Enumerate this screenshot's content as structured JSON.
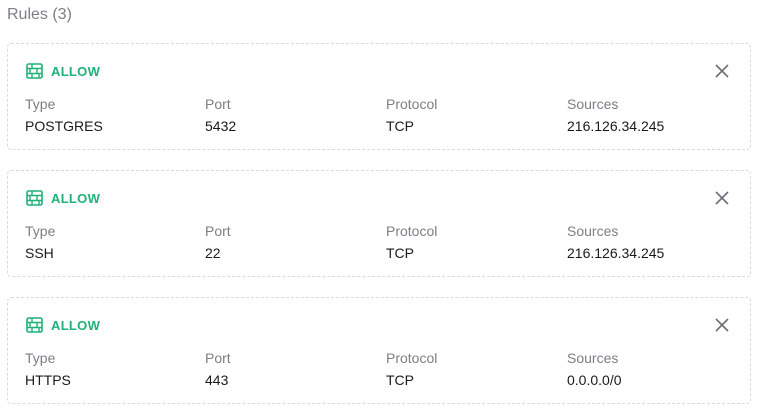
{
  "title": "Rules (3)",
  "accent": "#1fb177",
  "headers": [
    "Type",
    "Port",
    "Protocol",
    "Sources"
  ],
  "rules": [
    {
      "action": "ALLOW",
      "icon": "firewall-icon",
      "values": [
        "POSTGRES",
        "5432",
        "TCP",
        "216.126.34.245"
      ]
    },
    {
      "action": "ALLOW",
      "icon": "firewall-icon",
      "values": [
        "SSH",
        "22",
        "TCP",
        "216.126.34.245"
      ]
    },
    {
      "action": "ALLOW",
      "icon": "firewall-icon",
      "values": [
        "HTTPS",
        "443",
        "TCP",
        "0.0.0.0/0"
      ]
    }
  ]
}
